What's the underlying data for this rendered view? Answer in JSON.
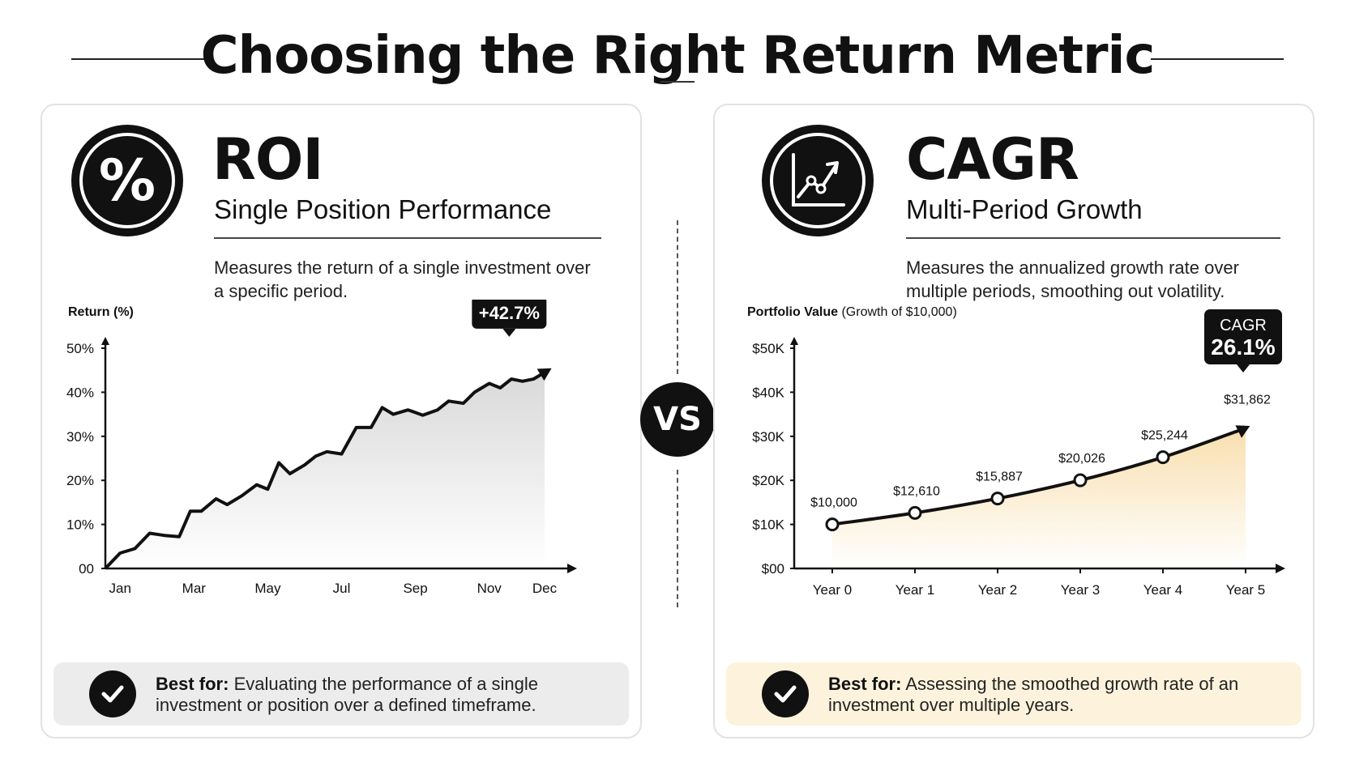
{
  "header": {
    "title": "Choosing the Right Return Metric"
  },
  "vs_label": "VS",
  "roi": {
    "name": "ROI",
    "subtitle": "Single Position Performance",
    "description": "Measures the return of a single investment over a specific period.",
    "best_for_label": "Best for:",
    "best_for_text": "Evaluating the performance of a single investment or position over a defined timeframe.",
    "accent": "#111111"
  },
  "cagr": {
    "name": "CAGR",
    "subtitle": "Multi-Period Growth",
    "description": "Measures the annualized growth rate over multiple periods, smoothing out volatility.",
    "best_for_label": "Best for:",
    "best_for_text": "Assessing the smoothed growth rate of an investment over multiple years.",
    "accent": "#f3c96b"
  },
  "chart_data": [
    {
      "type": "area",
      "ylabel": "Return (%)",
      "xlabel": "",
      "x_tick_labels": [
        "Jan",
        "Mar",
        "May",
        "Jul",
        "Sep",
        "Nov",
        "Dec"
      ],
      "x_tick_positions": [
        1,
        3,
        5,
        7,
        9,
        11,
        12.5
      ],
      "y_ticks": [
        0,
        10,
        20,
        30,
        40,
        50
      ],
      "y_tick_labels": [
        "00",
        "10%",
        "20%",
        "30%",
        "40%",
        "50%"
      ],
      "xlim": [
        0.6,
        12.5
      ],
      "ylim": [
        0,
        50
      ],
      "series": [
        {
          "x": [
            0.6,
            1.0,
            1.4,
            1.8,
            2.2,
            2.6,
            2.9,
            3.2,
            3.6,
            3.9,
            4.3,
            4.7,
            5.0,
            5.3,
            5.6,
            6.0,
            6.3,
            6.6,
            7.0,
            7.4,
            7.8,
            8.1,
            8.4,
            8.8,
            9.2,
            9.6,
            9.9,
            10.3,
            10.6,
            11.0,
            11.3,
            11.6,
            11.9,
            12.2,
            12.5
          ],
          "y": [
            0,
            3.5,
            4.5,
            8,
            7.5,
            7.2,
            13,
            13,
            15.8,
            14.5,
            16.5,
            19,
            18,
            24,
            21.5,
            23.5,
            25.5,
            26.5,
            26,
            32,
            32,
            36.5,
            35,
            36,
            34.8,
            36,
            38,
            37.5,
            40,
            42,
            41,
            43,
            42.5,
            43,
            44.5
          ]
        }
      ],
      "annotation": {
        "text": "+42.7%",
        "x": 12.2,
        "y": 44.5
      },
      "fill_color": "#d9d9d9",
      "line_color": "#111111",
      "grid": false
    },
    {
      "type": "line",
      "ylabel": "Portfolio Value",
      "ylabel_suffix": "(Growth of $10,000)",
      "xlabel": "",
      "categories": [
        "Year 0",
        "Year 1",
        "Year 2",
        "Year 3",
        "Year 4",
        "Year 5"
      ],
      "y_ticks": [
        0,
        10000,
        20000,
        30000,
        40000,
        50000
      ],
      "y_tick_labels": [
        "$00",
        "$10K",
        "$20K",
        "$30K",
        "$40K",
        "$50K"
      ],
      "ylim": [
        0,
        50000
      ],
      "series": [
        {
          "values": [
            10000,
            12610,
            15887,
            20026,
            25244,
            31862
          ],
          "data_labels": [
            "$10,000",
            "$12,610",
            "$15,887",
            "$20,026",
            "$25,244",
            "$31,862"
          ]
        }
      ],
      "annotation": {
        "line1": "CAGR",
        "line2": "26.1%"
      },
      "fill_color": "#f8dfae",
      "line_color": "#111111",
      "grid": false
    }
  ]
}
